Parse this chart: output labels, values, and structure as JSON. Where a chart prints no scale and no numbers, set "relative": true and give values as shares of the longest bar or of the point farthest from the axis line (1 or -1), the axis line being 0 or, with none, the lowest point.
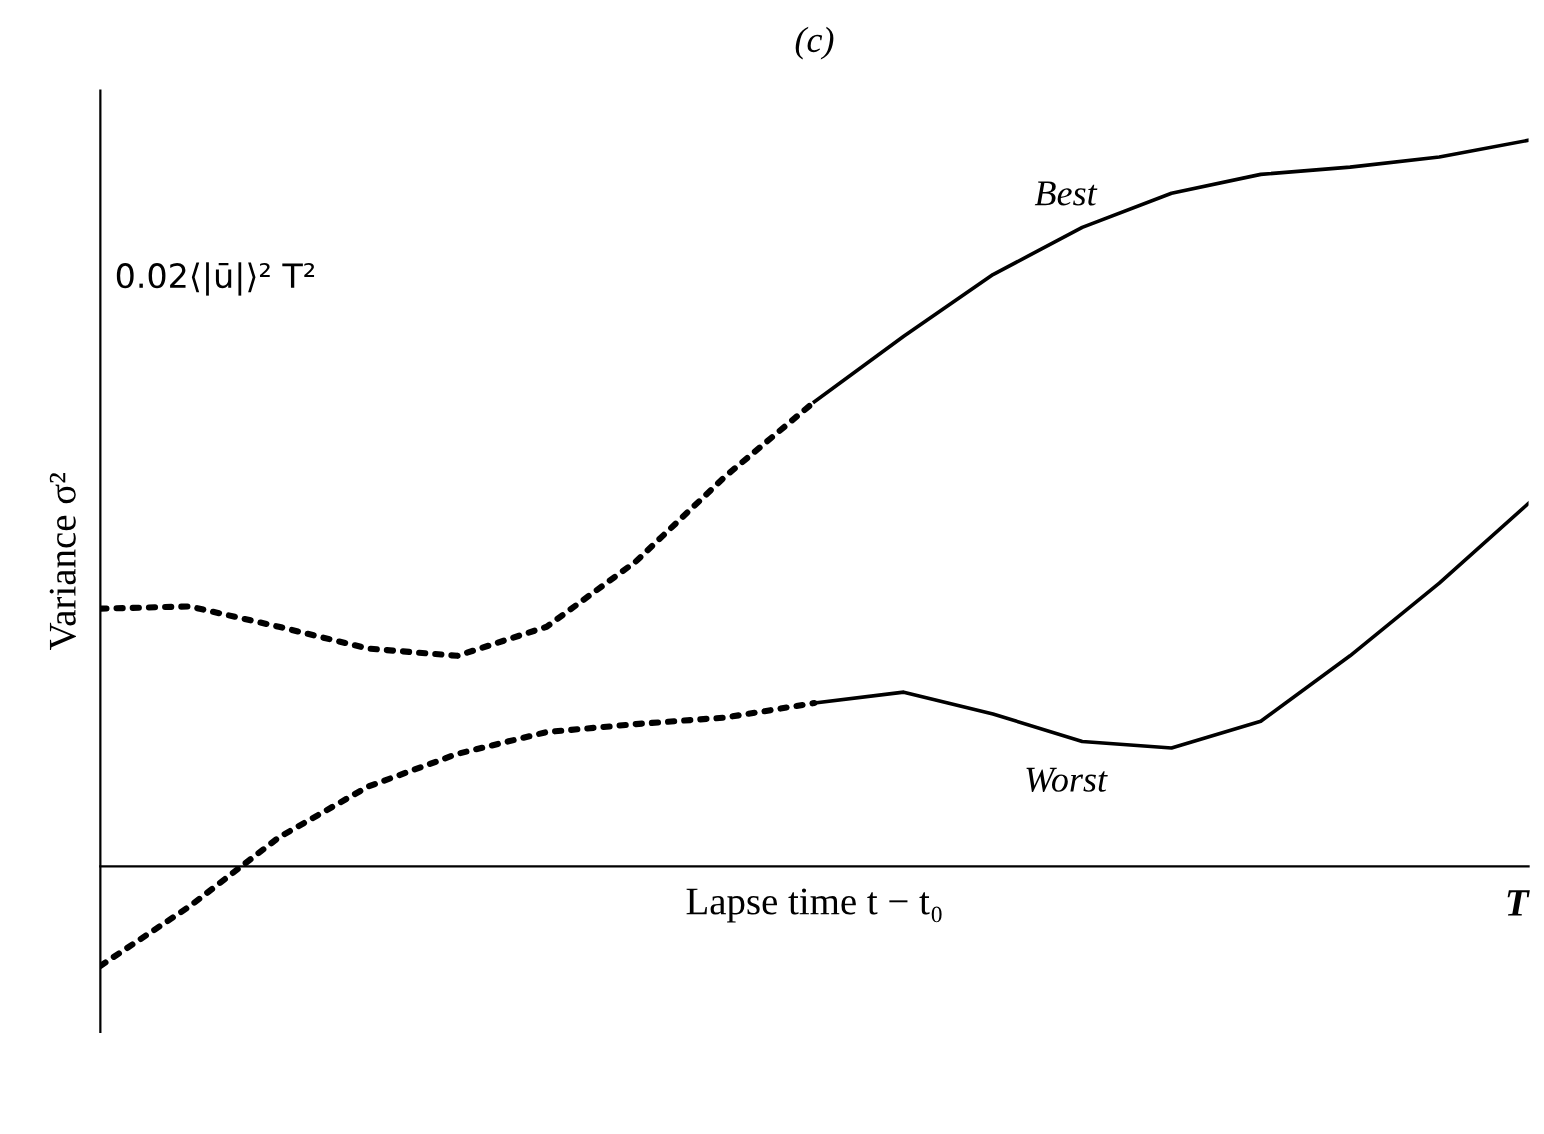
{
  "chart_data": {
    "type": "line",
    "relative": true,
    "title": "(c)",
    "xlabel": "Lapse time t − t₀",
    "ylabel": "Variance σ²",
    "annotations": [
      "0.02⟨|ū|⟩² T²",
      "T"
    ],
    "categories": [
      null,
      null,
      null,
      null,
      null,
      null,
      null,
      null,
      null,
      null,
      null,
      null,
      null,
      null,
      null,
      null,
      null
    ],
    "legend": false,
    "marker": "none",
    "series": [
      {
        "color": "#000000",
        "line_style": "dotted",
        "values": [
          0.355,
          0.358,
          0.33,
          0.3,
          0.29,
          0.33,
          0.42,
          0.537,
          0.64,
          null,
          null,
          null,
          null,
          null,
          null,
          null,
          null
        ]
      },
      {
        "name": "Best",
        "color": "#000000",
        "line_style": "solid",
        "values": [
          null,
          null,
          null,
          null,
          null,
          null,
          null,
          null,
          0.64,
          0.73,
          0.815,
          0.88,
          0.927,
          0.953,
          0.963,
          0.977,
          1
        ]
      },
      {
        "color": "#000000",
        "line_style": "dotted",
        "values": [
          -0.137,
          -0.055,
          0.04,
          0.11,
          0.155,
          0.185,
          0.196,
          0.205,
          0.225,
          null,
          null,
          null,
          null,
          null,
          null,
          null,
          null
        ]
      },
      {
        "name": "Worst",
        "color": "#000000",
        "line_style": "solid",
        "values": [
          null,
          null,
          null,
          null,
          null,
          null,
          null,
          null,
          0.225,
          0.24,
          0.21,
          0.172,
          0.163,
          0.2,
          0.29,
          0.39,
          0.5
        ]
      }
    ]
  }
}
